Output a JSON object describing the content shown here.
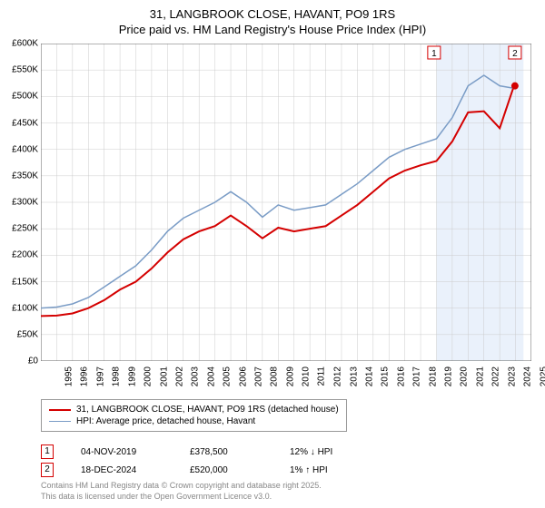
{
  "title_line1": "31, LANGBROOK CLOSE, HAVANT, PO9 1RS",
  "title_line2": "Price paid vs. HM Land Registry's House Price Index (HPI)",
  "chart": {
    "type": "line",
    "xlim": [
      1995,
      2026
    ],
    "ylim": [
      0,
      600000
    ],
    "ytick_step": 50000,
    "y_labels": [
      "£0",
      "£50K",
      "£100K",
      "£150K",
      "£200K",
      "£250K",
      "£300K",
      "£350K",
      "£400K",
      "£450K",
      "£500K",
      "£550K",
      "£600K"
    ],
    "x_labels": [
      "1995",
      "1996",
      "1997",
      "1998",
      "1999",
      "2000",
      "2001",
      "2002",
      "2003",
      "2004",
      "2005",
      "2006",
      "2007",
      "2008",
      "2009",
      "2010",
      "2011",
      "2012",
      "2013",
      "2014",
      "2015",
      "2016",
      "2017",
      "2018",
      "2019",
      "2020",
      "2021",
      "2022",
      "2023",
      "2024",
      "2025",
      "2026"
    ],
    "background_color": "#ffffff",
    "grid_color": "#cccccc",
    "axis_color": "#666666",
    "highlight_band": {
      "x_start": 2020,
      "x_end": 2025.5,
      "fill": "#eaf1fb"
    },
    "series": [
      {
        "name": "price_paid",
        "color": "#d40000",
        "line_width": 2,
        "data": [
          [
            1995,
            85000
          ],
          [
            1996,
            86000
          ],
          [
            1997,
            90000
          ],
          [
            1998,
            100000
          ],
          [
            1999,
            115000
          ],
          [
            2000,
            135000
          ],
          [
            2001,
            150000
          ],
          [
            2002,
            175000
          ],
          [
            2003,
            205000
          ],
          [
            2004,
            230000
          ],
          [
            2005,
            245000
          ],
          [
            2006,
            255000
          ],
          [
            2007,
            275000
          ],
          [
            2008,
            255000
          ],
          [
            2009,
            232000
          ],
          [
            2010,
            252000
          ],
          [
            2011,
            245000
          ],
          [
            2012,
            250000
          ],
          [
            2013,
            255000
          ],
          [
            2014,
            275000
          ],
          [
            2015,
            295000
          ],
          [
            2016,
            320000
          ],
          [
            2017,
            345000
          ],
          [
            2018,
            360000
          ],
          [
            2019,
            370000
          ],
          [
            2020,
            378000
          ],
          [
            2021,
            415000
          ],
          [
            2022,
            470000
          ],
          [
            2023,
            472000
          ],
          [
            2024,
            440000
          ],
          [
            2024.9,
            520000
          ]
        ]
      },
      {
        "name": "hpi",
        "color": "#7a9cc6",
        "line_width": 1.5,
        "data": [
          [
            1995,
            100000
          ],
          [
            1996,
            102000
          ],
          [
            1997,
            108000
          ],
          [
            1998,
            120000
          ],
          [
            1999,
            140000
          ],
          [
            2000,
            160000
          ],
          [
            2001,
            180000
          ],
          [
            2002,
            210000
          ],
          [
            2003,
            245000
          ],
          [
            2004,
            270000
          ],
          [
            2005,
            285000
          ],
          [
            2006,
            300000
          ],
          [
            2007,
            320000
          ],
          [
            2008,
            300000
          ],
          [
            2009,
            272000
          ],
          [
            2010,
            295000
          ],
          [
            2011,
            285000
          ],
          [
            2012,
            290000
          ],
          [
            2013,
            295000
          ],
          [
            2014,
            315000
          ],
          [
            2015,
            335000
          ],
          [
            2016,
            360000
          ],
          [
            2017,
            385000
          ],
          [
            2018,
            400000
          ],
          [
            2019,
            410000
          ],
          [
            2020,
            420000
          ],
          [
            2021,
            460000
          ],
          [
            2022,
            520000
          ],
          [
            2023,
            540000
          ],
          [
            2024,
            520000
          ],
          [
            2025,
            515000
          ]
        ]
      }
    ],
    "markers": [
      {
        "id": "1",
        "x": 2019.85,
        "y_label_pos": 595000,
        "color": "#d40000"
      },
      {
        "id": "2",
        "x": 2024.96,
        "y_label_pos": 595000,
        "color": "#d40000",
        "point_x": 2024.96,
        "point_y": 520000
      }
    ]
  },
  "legend": {
    "items": [
      {
        "color": "#d40000",
        "width": 2,
        "label": "31, LANGBROOK CLOSE, HAVANT, PO9 1RS (detached house)"
      },
      {
        "color": "#7a9cc6",
        "width": 1.5,
        "label": "HPI: Average price, detached house, Havant"
      }
    ]
  },
  "transactions": [
    {
      "marker": "1",
      "marker_color": "#d40000",
      "date": "04-NOV-2019",
      "price": "£378,500",
      "pct": "12%",
      "arrow": "↓",
      "note": "HPI"
    },
    {
      "marker": "2",
      "marker_color": "#d40000",
      "date": "18-DEC-2024",
      "price": "£520,000",
      "pct": "1%",
      "arrow": "↑",
      "note": "HPI"
    }
  ],
  "footnote_line1": "Contains HM Land Registry data © Crown copyright and database right 2025.",
  "footnote_line2": "This data is licensed under the Open Government Licence v3.0."
}
